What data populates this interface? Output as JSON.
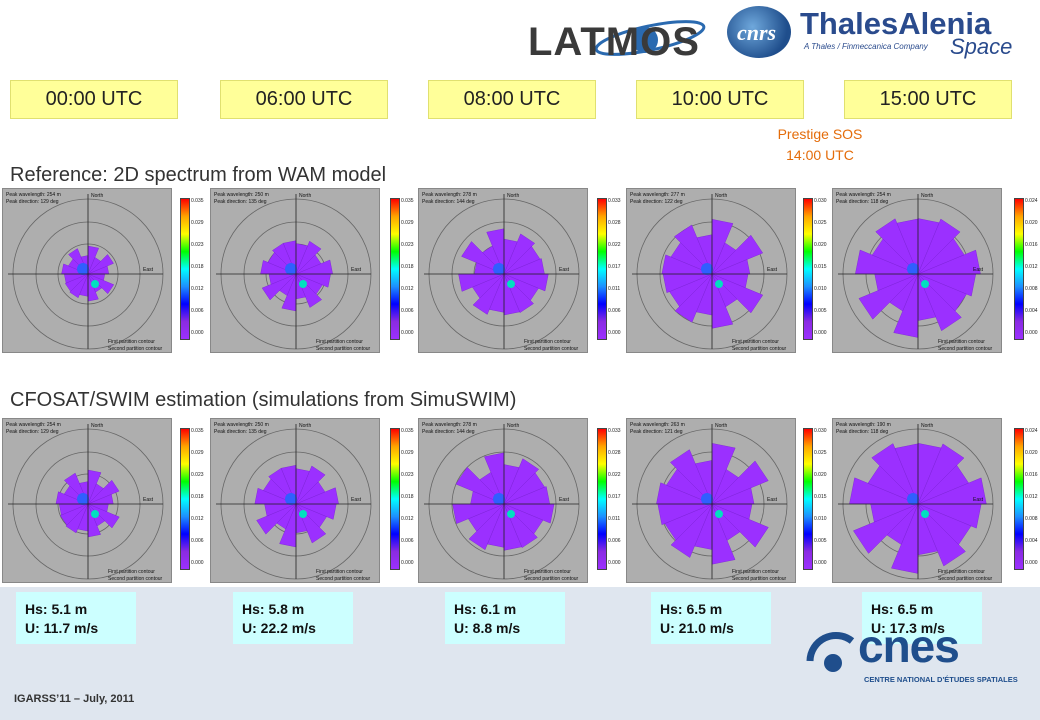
{
  "logos": {
    "latmos": "LATMOS",
    "cnrs": "cnrs",
    "thales_name": "ThalesAlenia",
    "thales_tagline": "A Thales / Finmeccanica Company",
    "thales_space": "Space",
    "cnes": "cnes",
    "cnes_subtitle": "CENTRE NATIONAL D'ÉTUDES SPATIALES"
  },
  "times": [
    "00:00 UTC",
    "06:00 UTC",
    "08:00 UTC",
    "10:00 UTC",
    "15:00 UTC"
  ],
  "prestige": {
    "line1": "Prestige SOS",
    "line2": "14:00 UTC"
  },
  "headings": {
    "reference": "Reference: 2D spectrum from WAM model",
    "estimation": "CFOSAT/SWIM estimation (simulations from SimuSWIM)"
  },
  "panel_labels": {
    "north": "North",
    "east": "East",
    "first_contour": "First partition contour",
    "second_contour": "Second partition contour"
  },
  "panels_top": [
    {
      "peak_wavelength": "Peak wavelength: 254 m",
      "peak_direction": "Peak direction: 129 deg"
    },
    {
      "peak_wavelength": "Peak wavelength: 250 m",
      "peak_direction": "Peak direction: 135 deg"
    },
    {
      "peak_wavelength": "Peak wavelength: 278 m",
      "peak_direction": "Peak direction: 144 deg"
    },
    {
      "peak_wavelength": "Peak wavelength: 277 m",
      "peak_direction": "Peak direction: 122 deg"
    },
    {
      "peak_wavelength": "Peak wavelength: 254 m",
      "peak_direction": "Peak direction: 118 deg"
    }
  ],
  "panels_bottom": [
    {
      "peak_wavelength": "Peak wavelength: 254 m",
      "peak_direction": "Peak direction: 129 deg"
    },
    {
      "peak_wavelength": "Peak wavelength: 250 m",
      "peak_direction": "Peak direction: 135 deg"
    },
    {
      "peak_wavelength": "Peak wavelength: 278 m",
      "peak_direction": "Peak direction: 144 deg"
    },
    {
      "peak_wavelength": "Peak wavelength: 263 m",
      "peak_direction": "Peak direction: 121 deg"
    },
    {
      "peak_wavelength": "Peak wavelength: 190 m",
      "peak_direction": "Peak direction: 118 deg"
    }
  ],
  "colorbars": [
    {
      "ticks": [
        "0.035",
        "0.029",
        "0.023",
        "0.018",
        "0.012",
        "0.006",
        "0.000"
      ]
    },
    {
      "ticks": [
        "0.035",
        "0.029",
        "0.023",
        "0.018",
        "0.012",
        "0.006",
        "0.000"
      ]
    },
    {
      "ticks": [
        "0.033",
        "0.028",
        "0.022",
        "0.017",
        "0.011",
        "0.006",
        "0.000"
      ]
    },
    {
      "ticks": [
        "0.030",
        "0.025",
        "0.020",
        "0.015",
        "0.010",
        "0.005",
        "0.000"
      ]
    },
    {
      "ticks": [
        "0.024",
        "0.020",
        "0.016",
        "0.012",
        "0.008",
        "0.004",
        "0.000"
      ]
    }
  ],
  "results": [
    {
      "hs": "Hs: 5.1 m",
      "u": "U: 11.7 m/s"
    },
    {
      "hs": "Hs: 5.8 m",
      "u": "U: 22.2 m/s"
    },
    {
      "hs": "Hs: 6.1 m",
      "u": "U: 8.8 m/s"
    },
    {
      "hs": "Hs: 6.5 m",
      "u": "U: 21.0 m/s"
    },
    {
      "hs": "Hs: 6.5 m",
      "u": "U: 17.3 m/s"
    }
  ],
  "footer": "IGARSS’11 – July, 2011",
  "colors": {
    "time_box": "#ffff99",
    "prestige": "#e46c0a",
    "result_box": "#ccffff",
    "spectrum": "#9b30ff",
    "panel_bg": "#aeaeae",
    "footer_band": "#dfe6ef",
    "logo_blue": "#2a4b8d"
  }
}
